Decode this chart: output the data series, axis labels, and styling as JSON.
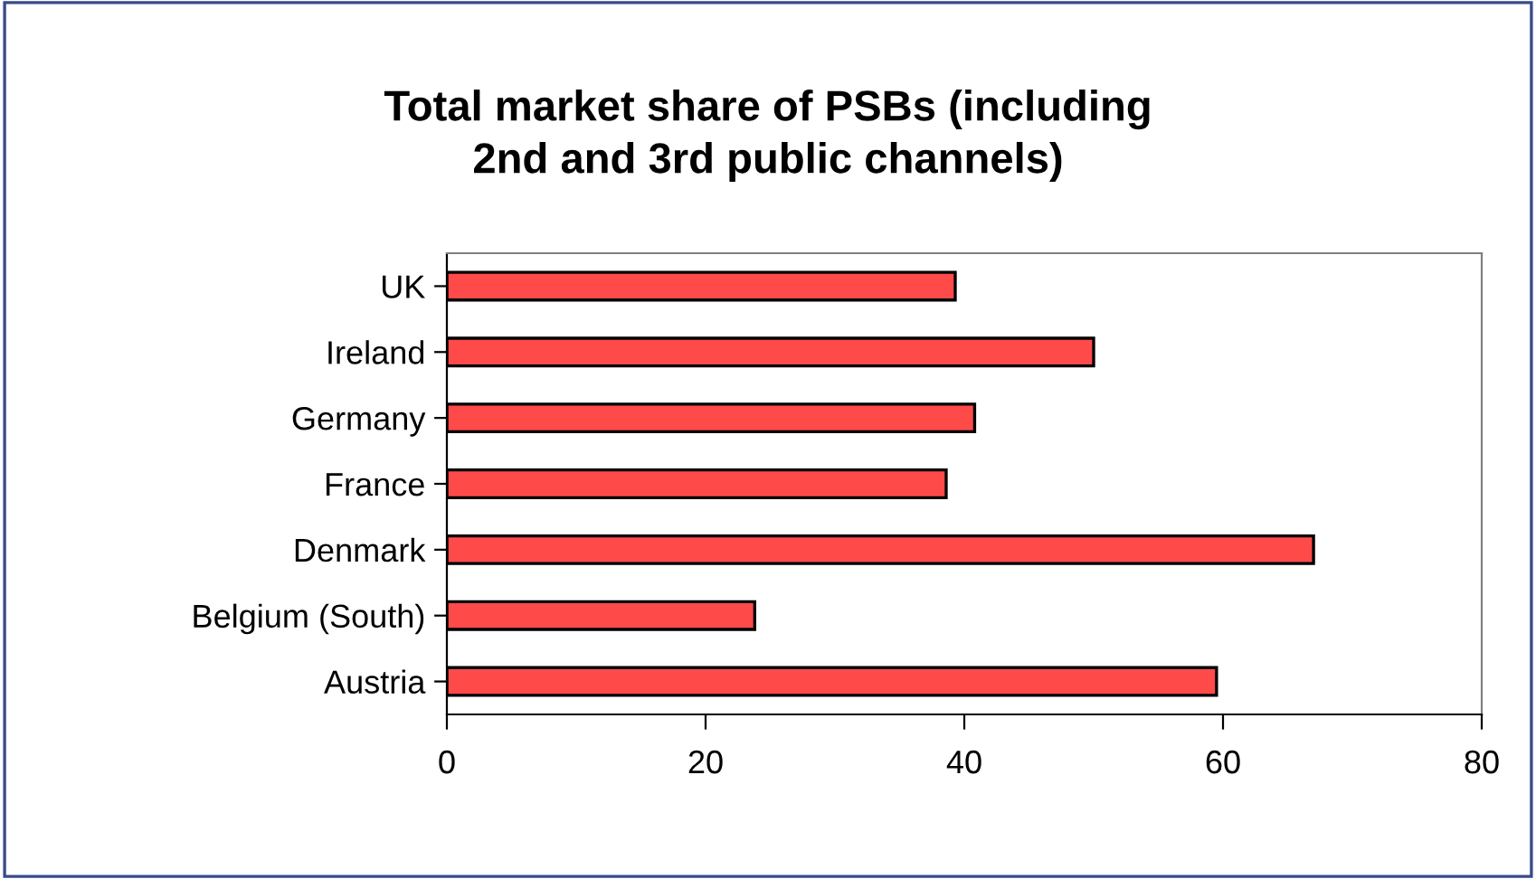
{
  "chart_data": {
    "type": "bar",
    "orientation": "horizontal",
    "title": "Total market share of PSBs (including\n2nd and 3rd public channels)",
    "categories": [
      "UK",
      "Ireland",
      "Germany",
      "France",
      "Denmark",
      "Belgium (South)",
      "Austria"
    ],
    "values": [
      39.3,
      50.0,
      40.8,
      38.6,
      67.0,
      23.8,
      59.5
    ],
    "color": "#ff4a4a",
    "xlim": [
      0,
      80
    ],
    "xticks": [
      0,
      20,
      40,
      60,
      80
    ],
    "grid": false
  }
}
